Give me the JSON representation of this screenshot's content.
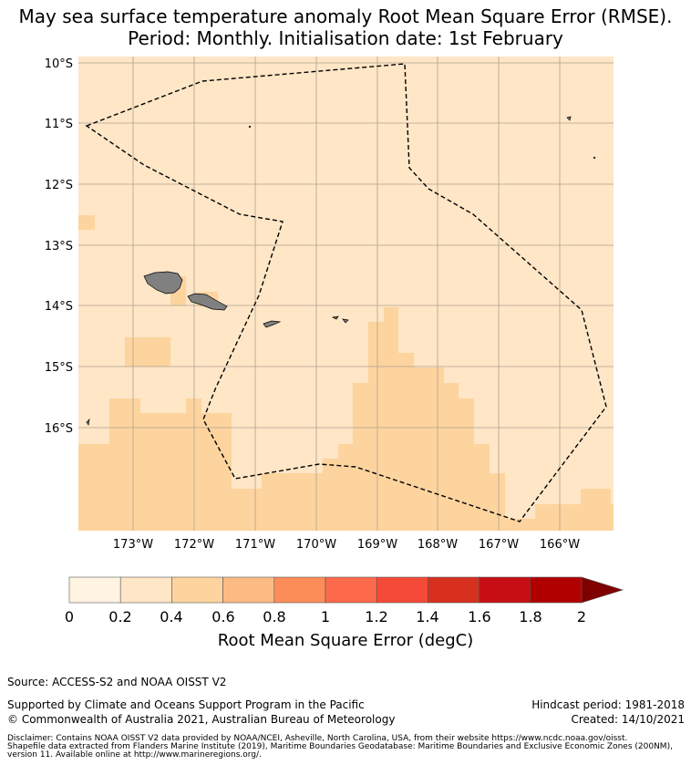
{
  "title_line1": "May sea surface temperature anomaly Root Mean Square Error (RMSE).",
  "title_line2": "Period: Monthly. Initialisation date: 1st February",
  "map": {
    "lat_labels": [
      "10°S",
      "11°S",
      "12°S",
      "13°S",
      "14°S",
      "15°S",
      "16°S"
    ],
    "lon_labels": [
      "173°W",
      "172°W",
      "171°W",
      "170°W",
      "169°W",
      "168°W",
      "167°W",
      "166°W"
    ],
    "colors": {
      "class_0_2_to_0_4": "#fee6c6",
      "class_0_4_to_0_6": "#fdd49e",
      "land": "#808080",
      "eez_boundary": "#000000",
      "gridline": "#b0a090"
    },
    "eez_boundary_style": "dashed"
  },
  "colorbar": {
    "ticks": [
      "0",
      "0.2",
      "0.4",
      "0.6",
      "0.8",
      "1",
      "1.2",
      "1.4",
      "1.6",
      "1.8",
      "2"
    ],
    "colors": [
      "#fff3e2",
      "#fee6c6",
      "#fdd49e",
      "#fdbb84",
      "#fc8d59",
      "#fc6a4b",
      "#f54a38",
      "#d7301f",
      "#c60e14",
      "#b00000",
      "#7f0000"
    ],
    "extend": "max",
    "label": "Root Mean Square Error (degC)"
  },
  "footer": {
    "source": "Source: ACCESS-S2 and NOAA OISST V2",
    "supported_line1": "Supported by Climate and Oceans Support Program in the Pacific",
    "supported_line2": "© Commonwealth of Australia 2021, Australian Bureau of Meteorology",
    "hindcast": "Hindcast period: 1981-2018",
    "created": "Created: 14/10/2021",
    "disclaimer_line1": "Disclaimer: Contains NOAA OISST V2 data provided by NOAA/NCEI, Asheville, North Carolina, USA, from their website https://www.ncdc.noaa.gov/oisst.",
    "disclaimer_line2": "Shapefile data extracted from Flanders Marine Institute (2019), Maritime Boundaries Geodatabase: Maritime Boundaries and Exclusive Economic Zones (200NM),",
    "disclaimer_line3": "version 11. Available online at http://www.marineregions.org/."
  }
}
